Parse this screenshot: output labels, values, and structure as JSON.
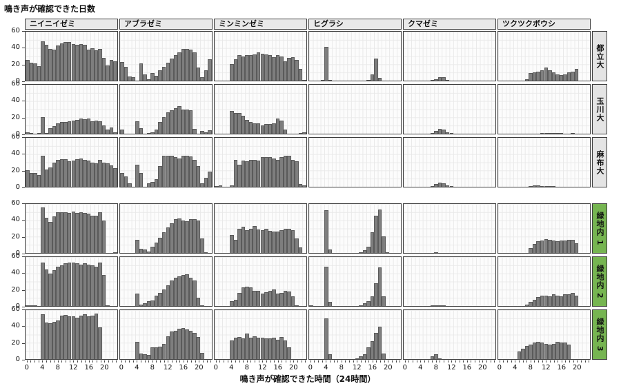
{
  "chart_data": {
    "type": "bar",
    "ylabel": "鳴き声が確認できた日数",
    "xlabel": "鳴き声が確認できた時間（24時間）",
    "ylim": [
      0,
      60
    ],
    "y_ticks": [
      60,
      40,
      20,
      0
    ],
    "x_ticks": [
      0,
      4,
      8,
      12,
      16,
      20
    ],
    "x_unit_hours": 24,
    "grid": "on",
    "facet_columns": [
      "ニイニイゼミ",
      "アブラゼミ",
      "ミンミンゼミ",
      "ヒグラシ",
      "クマゼミ",
      "ツクツクボウシ"
    ],
    "facet_rows": [
      {
        "label": "都立大",
        "group": "site"
      },
      {
        "label": "玉川大",
        "group": "site"
      },
      {
        "label": "麻布大",
        "group": "site"
      },
      {
        "label": "緑地内 1",
        "group": "green"
      },
      {
        "label": "緑地内 2",
        "group": "green"
      },
      {
        "label": "緑地内 3",
        "group": "green"
      }
    ],
    "values": [
      [
        [
          25,
          22,
          21,
          18,
          48,
          44,
          39,
          38,
          43,
          46,
          47,
          47,
          45,
          44,
          45,
          44,
          38,
          40,
          37,
          39,
          28,
          19,
          25,
          24
        ],
        [
          23,
          17,
          5,
          4,
          0,
          21,
          8,
          2,
          9,
          6,
          13,
          17,
          22,
          27,
          31,
          35,
          39,
          39,
          38,
          35,
          16,
          4,
          13,
          26
        ],
        [
          0,
          0,
          0,
          0,
          20,
          26,
          31,
          30,
          31,
          31,
          32,
          35,
          33,
          32,
          31,
          29,
          31,
          30,
          24,
          28,
          29,
          25,
          14,
          1
        ],
        [
          0,
          0,
          0,
          1,
          41,
          1,
          0,
          0,
          0,
          0,
          0,
          0,
          0,
          0,
          0,
          1,
          8,
          27,
          3,
          0,
          0,
          0,
          0,
          0
        ],
        [
          0,
          0,
          0,
          0,
          0,
          0,
          0,
          1,
          2,
          4,
          4,
          1,
          0,
          0,
          0,
          0,
          0,
          0,
          0,
          0,
          0,
          0,
          0,
          0
        ],
        [
          0,
          0,
          0,
          0,
          0,
          0,
          0,
          2,
          9,
          10,
          11,
          13,
          16,
          13,
          10,
          8,
          7,
          8,
          10,
          11,
          14,
          0,
          0,
          0
        ]
      ],
      [
        [
          2,
          1,
          0,
          1,
          20,
          1,
          7,
          9,
          13,
          14,
          14,
          15,
          16,
          17,
          19,
          18,
          19,
          15,
          16,
          15,
          10,
          5,
          8,
          2
        ],
        [
          5,
          0,
          0,
          0,
          15,
          7,
          0,
          1,
          2,
          5,
          14,
          20,
          26,
          29,
          31,
          34,
          30,
          30,
          29,
          6,
          0,
          3,
          2,
          4
        ],
        [
          0,
          0,
          0,
          0,
          28,
          25,
          25,
          22,
          17,
          14,
          13,
          13,
          10,
          12,
          12,
          13,
          19,
          16,
          5,
          0,
          0,
          0,
          1,
          2
        ],
        [
          0,
          0,
          0,
          0,
          0,
          0,
          0,
          0,
          0,
          0,
          0,
          0,
          0,
          0,
          0,
          0,
          0,
          0,
          0,
          0,
          0,
          0,
          0,
          0
        ],
        [
          0,
          0,
          0,
          0,
          0,
          0,
          0,
          1,
          3,
          6,
          5,
          2,
          1,
          0,
          0,
          0,
          0,
          0,
          0,
          0,
          0,
          0,
          0,
          0
        ],
        [
          0,
          0,
          0,
          0,
          0,
          0,
          0,
          0,
          0,
          0,
          0,
          1,
          1,
          1,
          1,
          1,
          1,
          0,
          0,
          1,
          0,
          0,
          0,
          0
        ]
      ],
      [
        [
          20,
          17,
          17,
          14,
          38,
          21,
          24,
          30,
          33,
          34,
          34,
          31,
          32,
          34,
          35,
          33,
          32,
          30,
          29,
          33,
          30,
          29,
          26,
          23
        ],
        [
          17,
          13,
          4,
          0,
          27,
          17,
          0,
          4,
          6,
          9,
          25,
          38,
          38,
          38,
          36,
          35,
          38,
          38,
          37,
          33,
          25,
          4,
          11,
          19
        ],
        [
          1,
          2,
          0,
          0,
          2,
          33,
          27,
          32,
          31,
          33,
          33,
          32,
          36,
          36,
          36,
          35,
          33,
          36,
          38,
          38,
          33,
          31,
          3,
          2
        ],
        [
          0,
          0,
          0,
          0,
          0,
          0,
          0,
          0,
          0,
          0,
          0,
          0,
          0,
          0,
          0,
          0,
          0,
          0,
          0,
          0,
          0,
          0,
          0,
          0
        ],
        [
          0,
          0,
          0,
          0,
          0,
          0,
          0,
          1,
          3,
          5,
          4,
          2,
          1,
          0,
          0,
          0,
          0,
          0,
          0,
          0,
          0,
          0,
          0,
          0
        ],
        [
          0,
          0,
          0,
          0,
          0,
          0,
          0,
          0,
          1,
          2,
          2,
          1,
          1,
          1,
          1,
          0,
          0,
          0,
          0,
          0,
          0,
          0,
          0,
          0
        ]
      ],
      [
        [
          0,
          0,
          0,
          0,
          56,
          43,
          38,
          45,
          50,
          50,
          50,
          49,
          51,
          49,
          50,
          49,
          48,
          46,
          46,
          50,
          40,
          0,
          0,
          1
        ],
        [
          0,
          0,
          0,
          0,
          16,
          5,
          4,
          2,
          8,
          13,
          19,
          25,
          31,
          36,
          41,
          42,
          40,
          39,
          41,
          41,
          40,
          18,
          1,
          0
        ],
        [
          0,
          0,
          0,
          0,
          22,
          16,
          30,
          32,
          28,
          30,
          33,
          29,
          28,
          30,
          27,
          26,
          26,
          28,
          30,
          30,
          28,
          18,
          7,
          0
        ],
        [
          0,
          0,
          0,
          0,
          52,
          4,
          0,
          0,
          0,
          0,
          0,
          0,
          0,
          1,
          3,
          8,
          25,
          46,
          53,
          20,
          1,
          0,
          0,
          0
        ],
        [
          0,
          0,
          0,
          0,
          0,
          0,
          0,
          0,
          1,
          0,
          0,
          0,
          0,
          0,
          0,
          0,
          0,
          0,
          0,
          0,
          0,
          0,
          0,
          0
        ],
        [
          0,
          0,
          0,
          0,
          0,
          0,
          0,
          0,
          6,
          11,
          14,
          15,
          17,
          16,
          15,
          14,
          15,
          15,
          16,
          16,
          12,
          0,
          0,
          0
        ]
      ],
      [
        [
          1,
          1,
          1,
          0,
          53,
          45,
          40,
          44,
          48,
          50,
          52,
          53,
          53,
          52,
          51,
          52,
          51,
          50,
          48,
          53,
          38,
          1,
          0,
          0
        ],
        [
          0,
          0,
          0,
          0,
          15,
          2,
          3,
          6,
          7,
          13,
          16,
          20,
          25,
          31,
          35,
          36,
          38,
          39,
          35,
          31,
          10,
          1,
          0,
          0
        ],
        [
          0,
          0,
          0,
          0,
          6,
          8,
          16,
          23,
          24,
          23,
          19,
          19,
          15,
          17,
          19,
          20,
          15,
          16,
          19,
          18,
          12,
          1,
          0,
          0
        ],
        [
          1,
          0,
          0,
          0,
          48,
          5,
          0,
          0,
          0,
          0,
          0,
          0,
          0,
          1,
          3,
          6,
          12,
          28,
          47,
          12,
          0,
          0,
          0,
          0
        ],
        [
          0,
          0,
          0,
          0,
          0,
          0,
          0,
          1,
          1,
          1,
          1,
          0,
          0,
          0,
          0,
          0,
          0,
          0,
          0,
          0,
          0,
          0,
          0,
          0
        ],
        [
          0,
          0,
          0,
          0,
          0,
          0,
          0,
          2,
          5,
          8,
          11,
          13,
          13,
          12,
          14,
          13,
          12,
          14,
          14,
          16,
          13,
          0,
          0,
          0
        ]
      ],
      [
        [
          0,
          0,
          0,
          0,
          55,
          45,
          44,
          46,
          47,
          53,
          54,
          52,
          52,
          51,
          53,
          55,
          52,
          53,
          56,
          39,
          0,
          0,
          0,
          0
        ],
        [
          0,
          0,
          0,
          0,
          21,
          7,
          6,
          5,
          14,
          14,
          15,
          19,
          28,
          34,
          35,
          37,
          38,
          36,
          35,
          32,
          27,
          8,
          0,
          0
        ],
        [
          0,
          0,
          0,
          0,
          23,
          26,
          27,
          25,
          31,
          26,
          28,
          26,
          26,
          25,
          25,
          26,
          24,
          27,
          23,
          14,
          0,
          0,
          0,
          0
        ],
        [
          0,
          0,
          0,
          0,
          50,
          6,
          0,
          0,
          0,
          0,
          0,
          0,
          1,
          3,
          6,
          14,
          22,
          32,
          40,
          7,
          0,
          0,
          0,
          0
        ],
        [
          0,
          0,
          0,
          0,
          0,
          0,
          0,
          3,
          6,
          1,
          0,
          0,
          0,
          0,
          0,
          0,
          0,
          0,
          0,
          0,
          0,
          0,
          0,
          0
        ],
        [
          0,
          0,
          0,
          0,
          0,
          9,
          13,
          16,
          18,
          20,
          21,
          20,
          19,
          18,
          19,
          21,
          20,
          20,
          18,
          0,
          0,
          0,
          0,
          0
        ]
      ]
    ],
    "colors": {
      "bar": "#7e7e7e",
      "bar_border": "#5a5a5a",
      "facet_border": "#3d3d3d",
      "header_bg": "#e9e9e9",
      "row_label_bg_site": "#e4e4e4",
      "row_label_bg_green": "#76b551",
      "grid_line": "#e8e8e8"
    }
  }
}
